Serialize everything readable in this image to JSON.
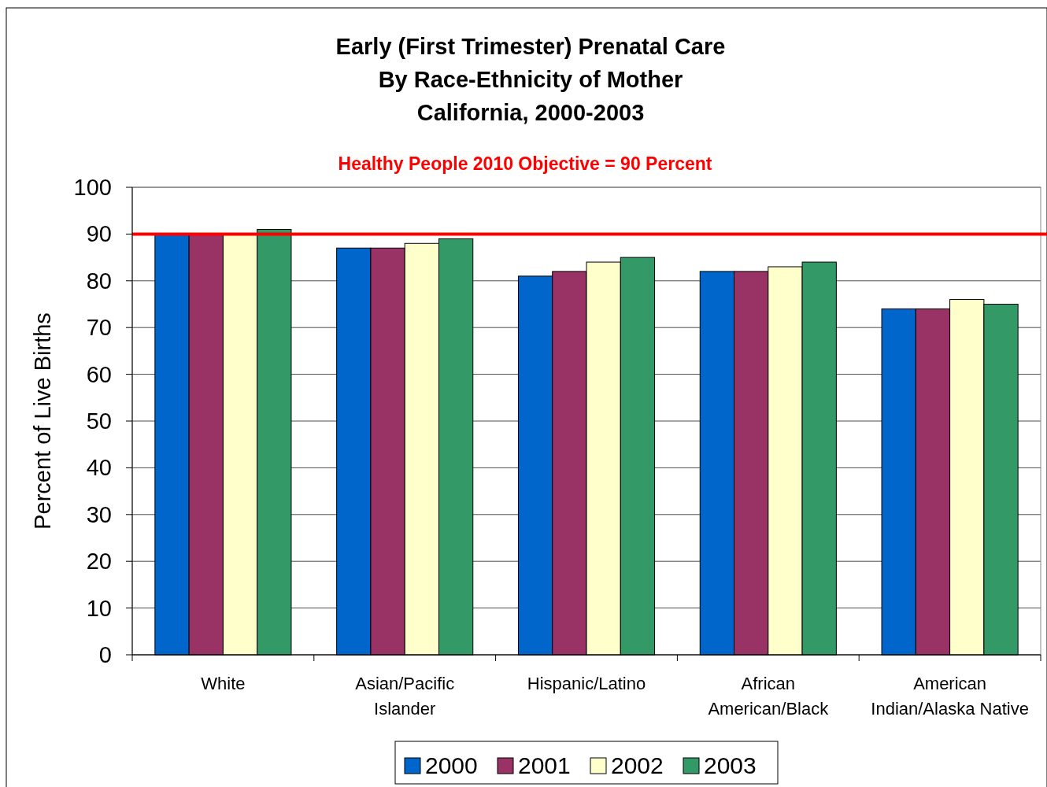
{
  "chart_data": {
    "type": "bar",
    "title": "Early (First Trimester) Prenatal Care\nBy Race-Ethnicity of Mother\nCalifornia, 2000-2003",
    "ylabel": "Percent of Live Births",
    "categories": [
      "White",
      "Asian/Pacific Islander",
      "Hispanic/Latino",
      "African American/Black",
      "American Indian/Alaska Native"
    ],
    "series": [
      {
        "name": "2000",
        "color": "#0066cc",
        "values": [
          90,
          87,
          81,
          82,
          74
        ]
      },
      {
        "name": "2001",
        "color": "#993366",
        "values": [
          90,
          87,
          82,
          82,
          74
        ]
      },
      {
        "name": "2002",
        "color": "#ffffcc",
        "values": [
          90,
          88,
          84,
          83,
          76
        ]
      },
      {
        "name": "2003",
        "color": "#339966",
        "values": [
          91,
          89,
          85,
          84,
          75
        ]
      }
    ],
    "ylim": [
      0,
      100
    ],
    "yticks": [
      0,
      10,
      20,
      30,
      40,
      50,
      60,
      70,
      80,
      90,
      100
    ],
    "grid": "y",
    "legend": "bottom",
    "ref_lines": [
      {
        "axis": "y",
        "value": 90,
        "label": "Healthy People 2010 Objective = 90 Percent",
        "color": "#ff0000"
      }
    ]
  }
}
